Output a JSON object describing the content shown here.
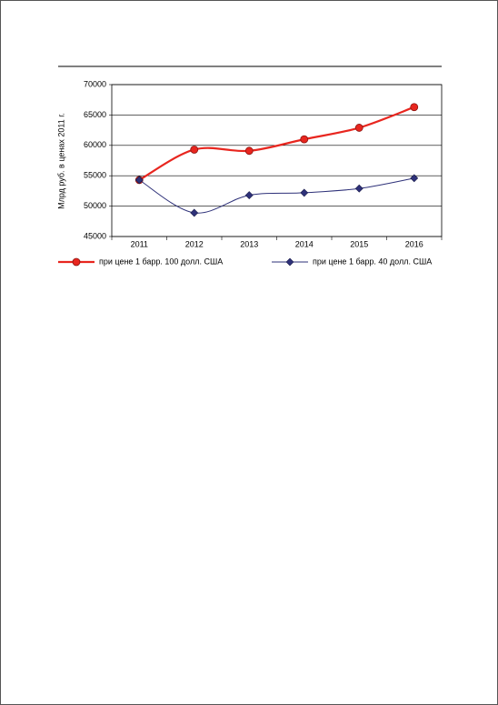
{
  "chart_data": {
    "type": "line",
    "y_label": "Млрд руб. в ценах 2011 г.",
    "categories": [
      "2011",
      "2012",
      "2013",
      "2014",
      "2015",
      "2016"
    ],
    "series": [
      {
        "name": "при цене 1 барр. 100 долл. США",
        "color": "#e8261f",
        "marker": "circle",
        "values": [
          54300,
          59300,
          59100,
          61000,
          62900,
          66300
        ]
      },
      {
        "name": "при цене 1 барр. 40 долл. США",
        "color": "#2e3179",
        "marker": "diamond",
        "values": [
          54300,
          48900,
          51800,
          52200,
          52900,
          54600
        ]
      }
    ],
    "ylim": [
      45000,
      70000
    ],
    "yticks": [
      45000,
      50000,
      55000,
      60000,
      65000,
      70000
    ],
    "grid": true,
    "smooth": true
  }
}
